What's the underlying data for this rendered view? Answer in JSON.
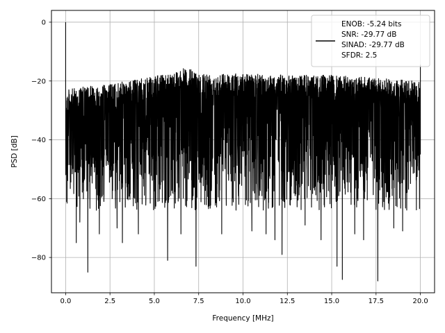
{
  "chart_data": {
    "type": "line",
    "xlabel": "Frequency [MHz]",
    "ylabel": "PSD [dB]",
    "xlim": [
      -0.8,
      20.8
    ],
    "ylim": [
      -92,
      4
    ],
    "x_ticks": [
      0.0,
      2.5,
      5.0,
      7.5,
      10.0,
      12.5,
      15.0,
      17.5,
      20.0
    ],
    "x_tick_labels": [
      "0.0",
      "2.5",
      "5.0",
      "7.5",
      "10.0",
      "12.5",
      "15.0",
      "17.5",
      "20.0"
    ],
    "y_ticks": [
      0,
      -20,
      -40,
      -60,
      -80
    ],
    "y_tick_labels": [
      "0",
      "−20",
      "−40",
      "−60",
      "−80"
    ],
    "grid": true,
    "legend_position": "top-right",
    "series": [
      {
        "color": "#000000",
        "x_range": [
          0.0,
          20.0
        ],
        "spike": {
          "x": 0.0,
          "y": 0.0
        },
        "end_spike": {
          "x": 20.0,
          "y": -14.5
        },
        "upper_envelope": [
          [
            0.0,
            -22
          ],
          [
            1.0,
            -21
          ],
          [
            2.5,
            -20
          ],
          [
            5.0,
            -17.5
          ],
          [
            6.8,
            -14.5
          ],
          [
            7.5,
            -16
          ],
          [
            10.0,
            -16.5
          ],
          [
            12.5,
            -17
          ],
          [
            15.0,
            -17
          ],
          [
            17.5,
            -18
          ],
          [
            20.0,
            -19
          ]
        ],
        "typical_floor": -60,
        "deep_dips": [
          [
            0.6,
            -75
          ],
          [
            0.8,
            -68
          ],
          [
            1.25,
            -85
          ],
          [
            1.9,
            -72
          ],
          [
            2.9,
            -70
          ],
          [
            3.2,
            -75
          ],
          [
            4.1,
            -72
          ],
          [
            5.75,
            -81
          ],
          [
            6.5,
            -72
          ],
          [
            7.35,
            -83
          ],
          [
            8.8,
            -72
          ],
          [
            10.5,
            -71
          ],
          [
            11.3,
            -72
          ],
          [
            11.8,
            -74
          ],
          [
            12.2,
            -79
          ],
          [
            13.5,
            -69
          ],
          [
            14.4,
            -74
          ],
          [
            15.3,
            -83
          ],
          [
            15.6,
            -87.5
          ],
          [
            16.3,
            -72
          ],
          [
            16.8,
            -74
          ],
          [
            17.6,
            -88
          ],
          [
            18.5,
            -70
          ],
          [
            19.0,
            -71
          ]
        ]
      }
    ],
    "legend_lines": [
      "ENOB: -5.24 bits",
      "SNR: -29.77 dB",
      "SINAD: -29.77 dB",
      "SFDR: 2.5"
    ]
  }
}
